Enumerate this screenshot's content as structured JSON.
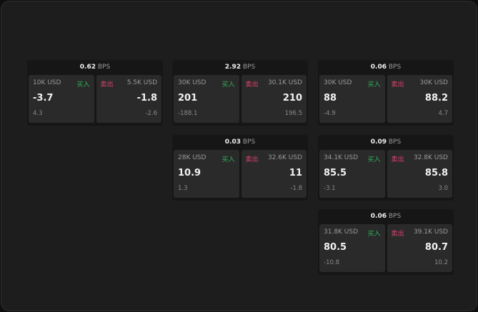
{
  "colors": {
    "buy": "#2eb35a",
    "sell": "#e0436f",
    "background": "#1d1d1d",
    "cell": "#2a2a2a"
  },
  "buy_label": "买入",
  "sell_label": "卖出",
  "unit": "BPS",
  "cards": [
    {
      "spread": "0.62",
      "bid": {
        "size": "10K USD",
        "price": "-3.7",
        "change": "4.3"
      },
      "ask": {
        "size": "5.5K USD",
        "price": "-1.8",
        "change": "-2.6"
      }
    },
    {
      "spread": "2.92",
      "bid": {
        "size": "30K USD",
        "price": "201",
        "change": "-188.1"
      },
      "ask": {
        "size": "30.1K USD",
        "price": "210",
        "change": "196.5"
      }
    },
    {
      "spread": "0.06",
      "bid": {
        "size": "30K USD",
        "price": "88",
        "change": "-4.9"
      },
      "ask": {
        "size": "30K USD",
        "price": "88.2",
        "change": "4.7"
      }
    },
    {
      "spread": "0.03",
      "bid": {
        "size": "28K USD",
        "price": "10.9",
        "change": "1.3"
      },
      "ask": {
        "size": "32.6K USD",
        "price": "11",
        "change": "-1.8"
      }
    },
    {
      "spread": "0.09",
      "bid": {
        "size": "34.1K USD",
        "price": "85.5",
        "change": "-3.1"
      },
      "ask": {
        "size": "32.8K USD",
        "price": "85.8",
        "change": "3.0"
      }
    },
    {
      "spread": "0.06",
      "bid": {
        "size": "31.8K USD",
        "price": "80.5",
        "change": "-10.8"
      },
      "ask": {
        "size": "39.1K USD",
        "price": "80.7",
        "change": "10.2"
      }
    }
  ]
}
